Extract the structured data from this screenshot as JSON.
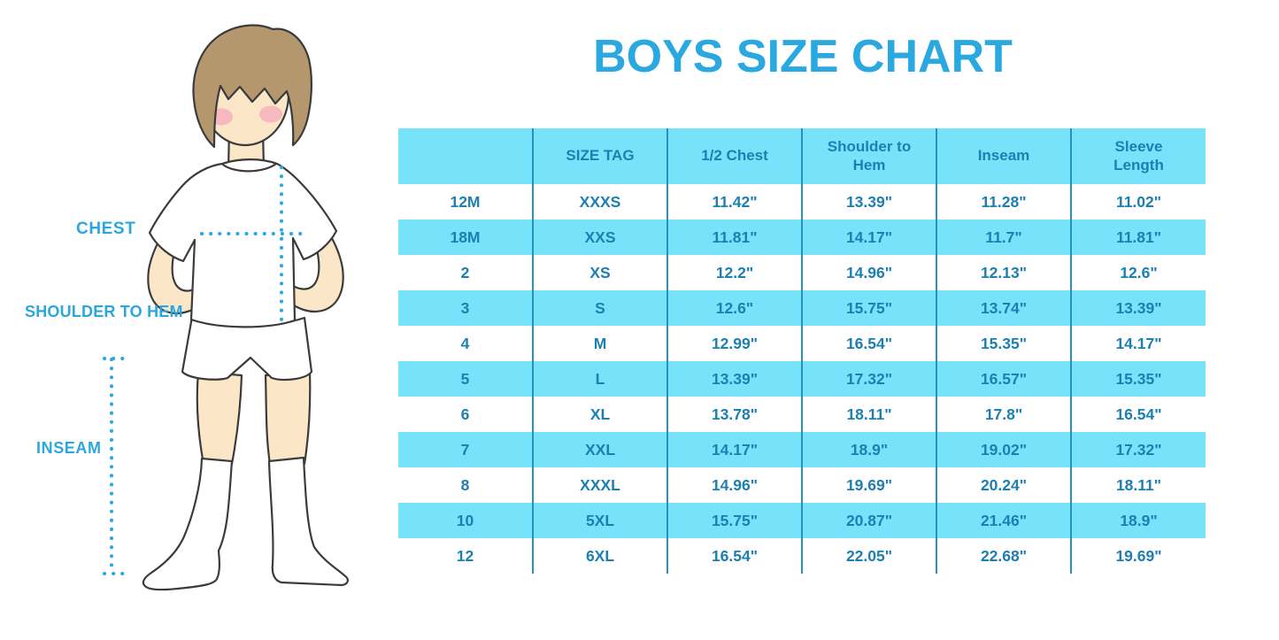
{
  "title": "BOYS SIZE CHART",
  "figure": {
    "labels": {
      "chest": "CHEST",
      "shoulder_to_hem": "SHOULDER TO HEM",
      "inseam": "INSEAM"
    }
  },
  "colors": {
    "title_blue": "#29A9E0",
    "label_blue": "#2AA7DF",
    "dotted_line_blue": "#2AA9E0",
    "table_band_cyan": "#77E3FA",
    "table_text_blue": "#1C7FB2",
    "column_divider_blue": "#2792C2",
    "skin": "#FBE7C8",
    "hair_brown": "#B5976E",
    "cheek_pink": "#F4A9BD",
    "outline_gray": "#3B3B3B"
  },
  "chart_data": {
    "type": "table",
    "title": "BOYS SIZE CHART",
    "columns": [
      "",
      "SIZE TAG",
      "1/2 Chest",
      "Shoulder to Hem",
      "Inseam",
      "Sleeve Length"
    ],
    "rows": [
      [
        "12M",
        "XXXS",
        "11.42\"",
        "13.39\"",
        "11.28\"",
        "11.02\""
      ],
      [
        "18M",
        "XXS",
        "11.81\"",
        "14.17\"",
        "11.7\"",
        "11.81\""
      ],
      [
        "2",
        "XS",
        "12.2\"",
        "14.96\"",
        "12.13\"",
        "12.6\""
      ],
      [
        "3",
        "S",
        "12.6\"",
        "15.75\"",
        "13.74\"",
        "13.39\""
      ],
      [
        "4",
        "M",
        "12.99\"",
        "16.54\"",
        "15.35\"",
        "14.17\""
      ],
      [
        "5",
        "L",
        "13.39\"",
        "17.32\"",
        "16.57\"",
        "15.35\""
      ],
      [
        "6",
        "XL",
        "13.78\"",
        "18.11\"",
        "17.8\"",
        "16.54\""
      ],
      [
        "7",
        "XXL",
        "14.17\"",
        "18.9\"",
        "19.02\"",
        "17.32\""
      ],
      [
        "8",
        "XXXL",
        "14.96\"",
        "19.69\"",
        "20.24\"",
        "18.11\""
      ],
      [
        "10",
        "5XL",
        "15.75\"",
        "20.87\"",
        "21.46\"",
        "18.9\""
      ],
      [
        "12",
        "6XL",
        "16.54\"",
        "22.05\"",
        "22.68\"",
        "19.69\""
      ]
    ],
    "row_striping": "white/cyan alternating, header cyan",
    "units": "inches"
  }
}
